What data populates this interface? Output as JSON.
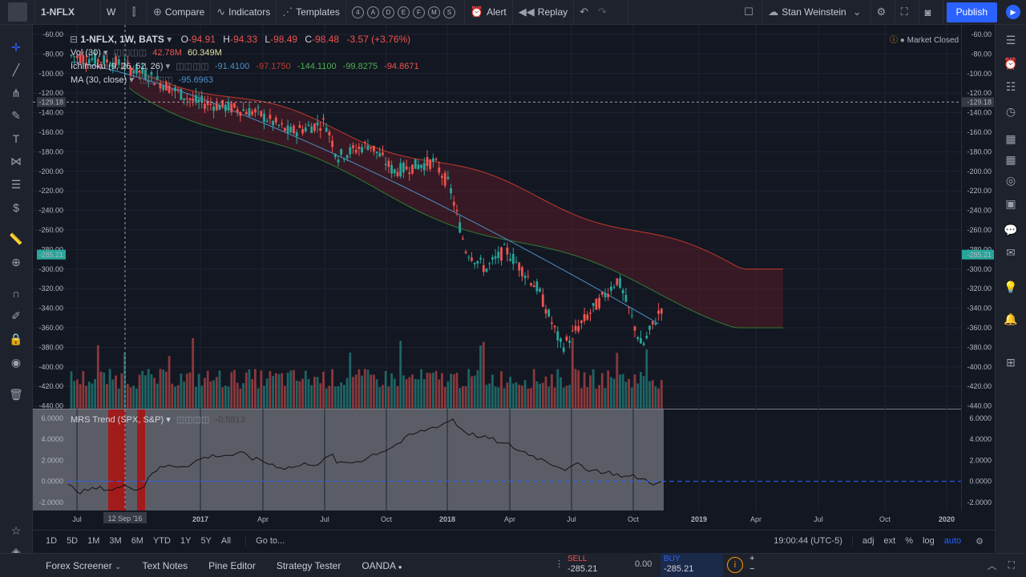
{
  "topbar": {
    "symbol": "1-NFLX",
    "interval": "W",
    "compare": "Compare",
    "indicators": "Indicators",
    "templates": "Templates",
    "circles": [
      "4",
      "A",
      "D",
      "E",
      "F",
      "M",
      "S"
    ],
    "alert": "Alert",
    "replay": "Replay",
    "user": "Stan Weinstein",
    "publish": "Publish"
  },
  "legend": {
    "title": "1-NFLX, 1W, BATS",
    "o_label": "O",
    "o": "-94.91",
    "h_label": "H",
    "h": "-94.33",
    "l_label": "L",
    "l": "-98.49",
    "c_label": "C",
    "c": "-98.48",
    "chg": "-3.57 (+3.76%)",
    "vol": "Vol (30)",
    "vol_v1": "42.78M",
    "vol_v2": "60.349M",
    "ichi": "Ichimoku (9, 26, 52, 26)",
    "ichi_v": [
      "-91.4100",
      "-97.1750",
      "-144.1100",
      "-99.8275",
      "-94.8671"
    ],
    "ma": "MA (30, close)",
    "ma_v": "-95.6963",
    "market": "Market Closed",
    "mrs": "MRS Trend (SPX, S&P)",
    "mrs_v": "-0.5813"
  },
  "price_axis": [
    "-60.00",
    "-80.00",
    "-100.00",
    "-120.00",
    "-140.00",
    "-160.00",
    "-180.00",
    "-200.00",
    "-220.00",
    "-240.00",
    "-260.00",
    "-280.00",
    "-300.00",
    "-320.00",
    "-340.00",
    "-360.00",
    "-380.00",
    "-400.00",
    "-420.00",
    "-440.00"
  ],
  "mrs_axis": [
    "6.0000",
    "4.0000",
    "2.0000",
    "0.0000",
    "-2.0000"
  ],
  "crosshair_price": "-129.18",
  "last_price": "-285.21",
  "time_axis": [
    "Jul",
    "2017",
    "Apr",
    "Jul",
    "Oct",
    "2018",
    "Apr",
    "Jul",
    "Oct",
    "2019",
    "Apr",
    "Jul",
    "Oct",
    "2020"
  ],
  "crosshair_date": "12 Sep '16",
  "ranges": [
    "1D",
    "5D",
    "1M",
    "3M",
    "6M",
    "YTD",
    "1Y",
    "5Y",
    "All"
  ],
  "goto": "Go to...",
  "clock": "19:00:44 (UTC-5)",
  "bottom_opts": [
    "adj",
    "ext",
    "%",
    "log",
    "auto"
  ],
  "footer": {
    "tabs": [
      "Forex Screener",
      "Text Notes",
      "Pine Editor",
      "Strategy Tester",
      "OANDA"
    ],
    "sell_label": "SELL",
    "sell": "-285.21",
    "spread": "0.00",
    "buy_label": "BUY",
    "buy": "-285.21"
  },
  "colors": {
    "up": "#26a69a",
    "down": "#ef5350",
    "ma": "#4a90c8",
    "accent": "#2962ff"
  }
}
